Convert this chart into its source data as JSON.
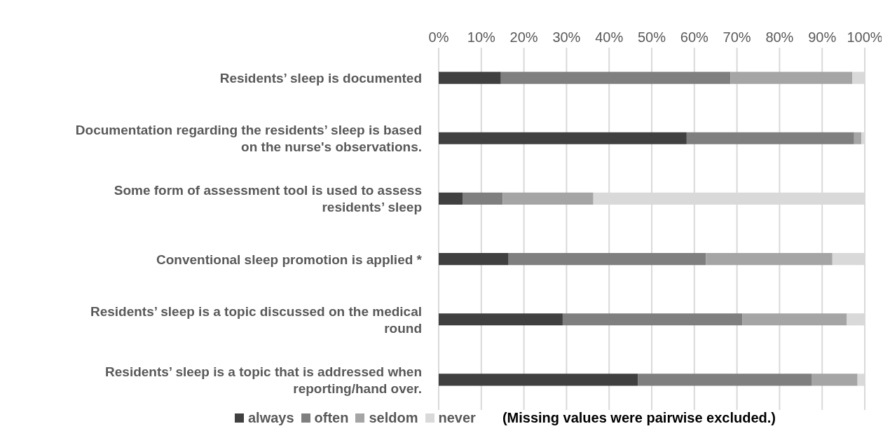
{
  "chart_data": {
    "type": "bar",
    "orientation": "horizontal",
    "stacked": true,
    "categories": [
      "Residents’ sleep is documented",
      "Documentation regarding the residents’ sleep is based on the nurse's observations.",
      "Some form of assessment tool is used to assess residents’ sleep",
      "Conventional sleep promotion is applied *",
      "Residents’ sleep is a topic discussed on the medical round",
      "Residents’ sleep is a topic that is addressed when reporting/hand over."
    ],
    "series": [
      {
        "name": "always",
        "color": "#404040",
        "values": [
          14.6,
          58.2,
          5.6,
          16.4,
          29.1,
          46.8
        ]
      },
      {
        "name": "often",
        "color": "#7f7f7f",
        "values": [
          53.9,
          39.3,
          9.4,
          46.3,
          42.2,
          40.7
        ]
      },
      {
        "name": "seldom",
        "color": "#a5a5a5",
        "values": [
          28.6,
          1.7,
          21.3,
          29.7,
          24.5,
          10.8
        ]
      },
      {
        "name": "never",
        "color": "#d9d9d9",
        "values": [
          2.9,
          0.8,
          63.7,
          7.6,
          4.2,
          1.7
        ]
      }
    ],
    "xlim": [
      0,
      100
    ],
    "xticks": [
      {
        "value": 0,
        "label": "0%"
      },
      {
        "value": 10,
        "label": "10%"
      },
      {
        "value": 20,
        "label": "20%"
      },
      {
        "value": 30,
        "label": "30%"
      },
      {
        "value": 40,
        "label": "40%"
      },
      {
        "value": 50,
        "label": "50%"
      },
      {
        "value": 60,
        "label": "60%"
      },
      {
        "value": 70,
        "label": "70%"
      },
      {
        "value": 80,
        "label": "80%"
      },
      {
        "value": 90,
        "label": "90%"
      },
      {
        "value": 100,
        "label": "100%"
      }
    ],
    "grid": "x",
    "legend": "bottom",
    "annotations": [
      "(Missing values were pairwise excluded.)"
    ]
  }
}
